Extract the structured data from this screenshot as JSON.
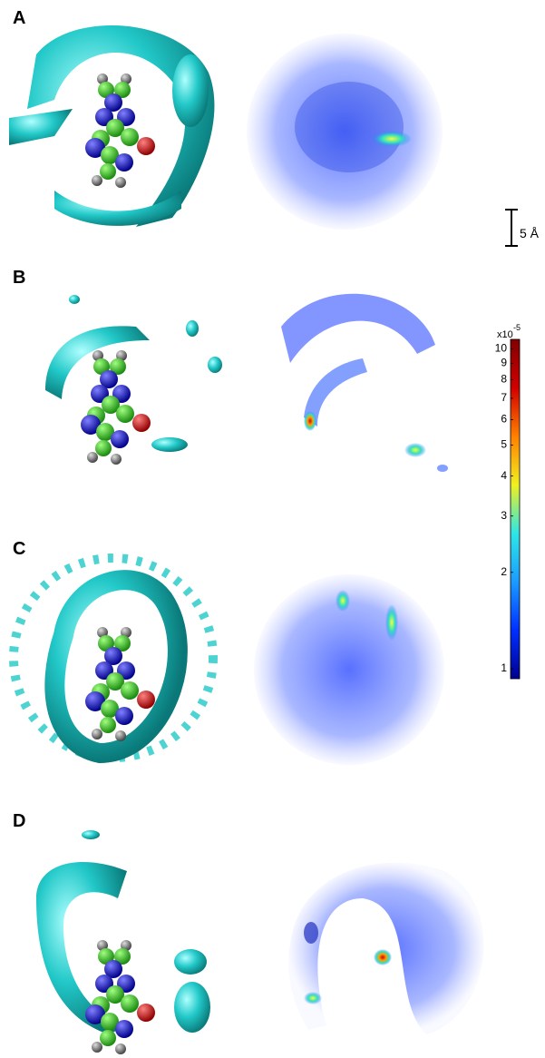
{
  "panels": [
    {
      "label": "A"
    },
    {
      "label": "B"
    },
    {
      "label": "C"
    },
    {
      "label": "D"
    }
  ],
  "scale_bar": {
    "label": "5 Å"
  },
  "colorbar": {
    "multiplier": "x10",
    "exponent": "-5",
    "log": true,
    "lim": [
      0.93,
      10.7
    ],
    "ticks": [
      1,
      2,
      3,
      4,
      5,
      6,
      7,
      8,
      9,
      10
    ],
    "colors": [
      "#00008f",
      "#0030ff",
      "#1a9cff",
      "#2ee6e6",
      "#f0f020",
      "#ff8000",
      "#d00000",
      "#800000"
    ]
  }
}
